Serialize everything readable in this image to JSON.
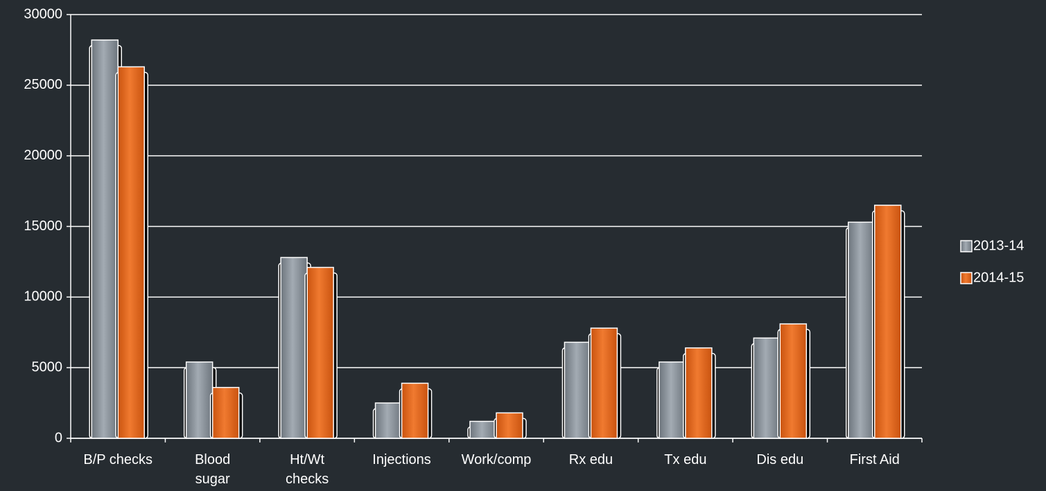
{
  "chart_data": {
    "type": "bar",
    "categories": [
      "B/P checks",
      "Blood\nsugar",
      "Ht/Wt\nchecks",
      "Injections",
      "Work/comp",
      "Rx edu",
      "Tx edu",
      "Dis edu",
      "First Aid"
    ],
    "series": [
      {
        "name": "2013-14",
        "color": "#8b939b",
        "values": [
          28200,
          5400,
          12800,
          2500,
          1200,
          6800,
          5400,
          7100,
          15300
        ]
      },
      {
        "name": "2014-15",
        "color": "#e8661c",
        "values": [
          26300,
          3600,
          12100,
          3900,
          1800,
          7800,
          6400,
          8100,
          16500
        ]
      }
    ],
    "ylim": [
      0,
      30000
    ],
    "yticks": [
      0,
      5000,
      10000,
      15000,
      20000,
      25000,
      30000
    ],
    "grid": true,
    "legend": "right"
  }
}
